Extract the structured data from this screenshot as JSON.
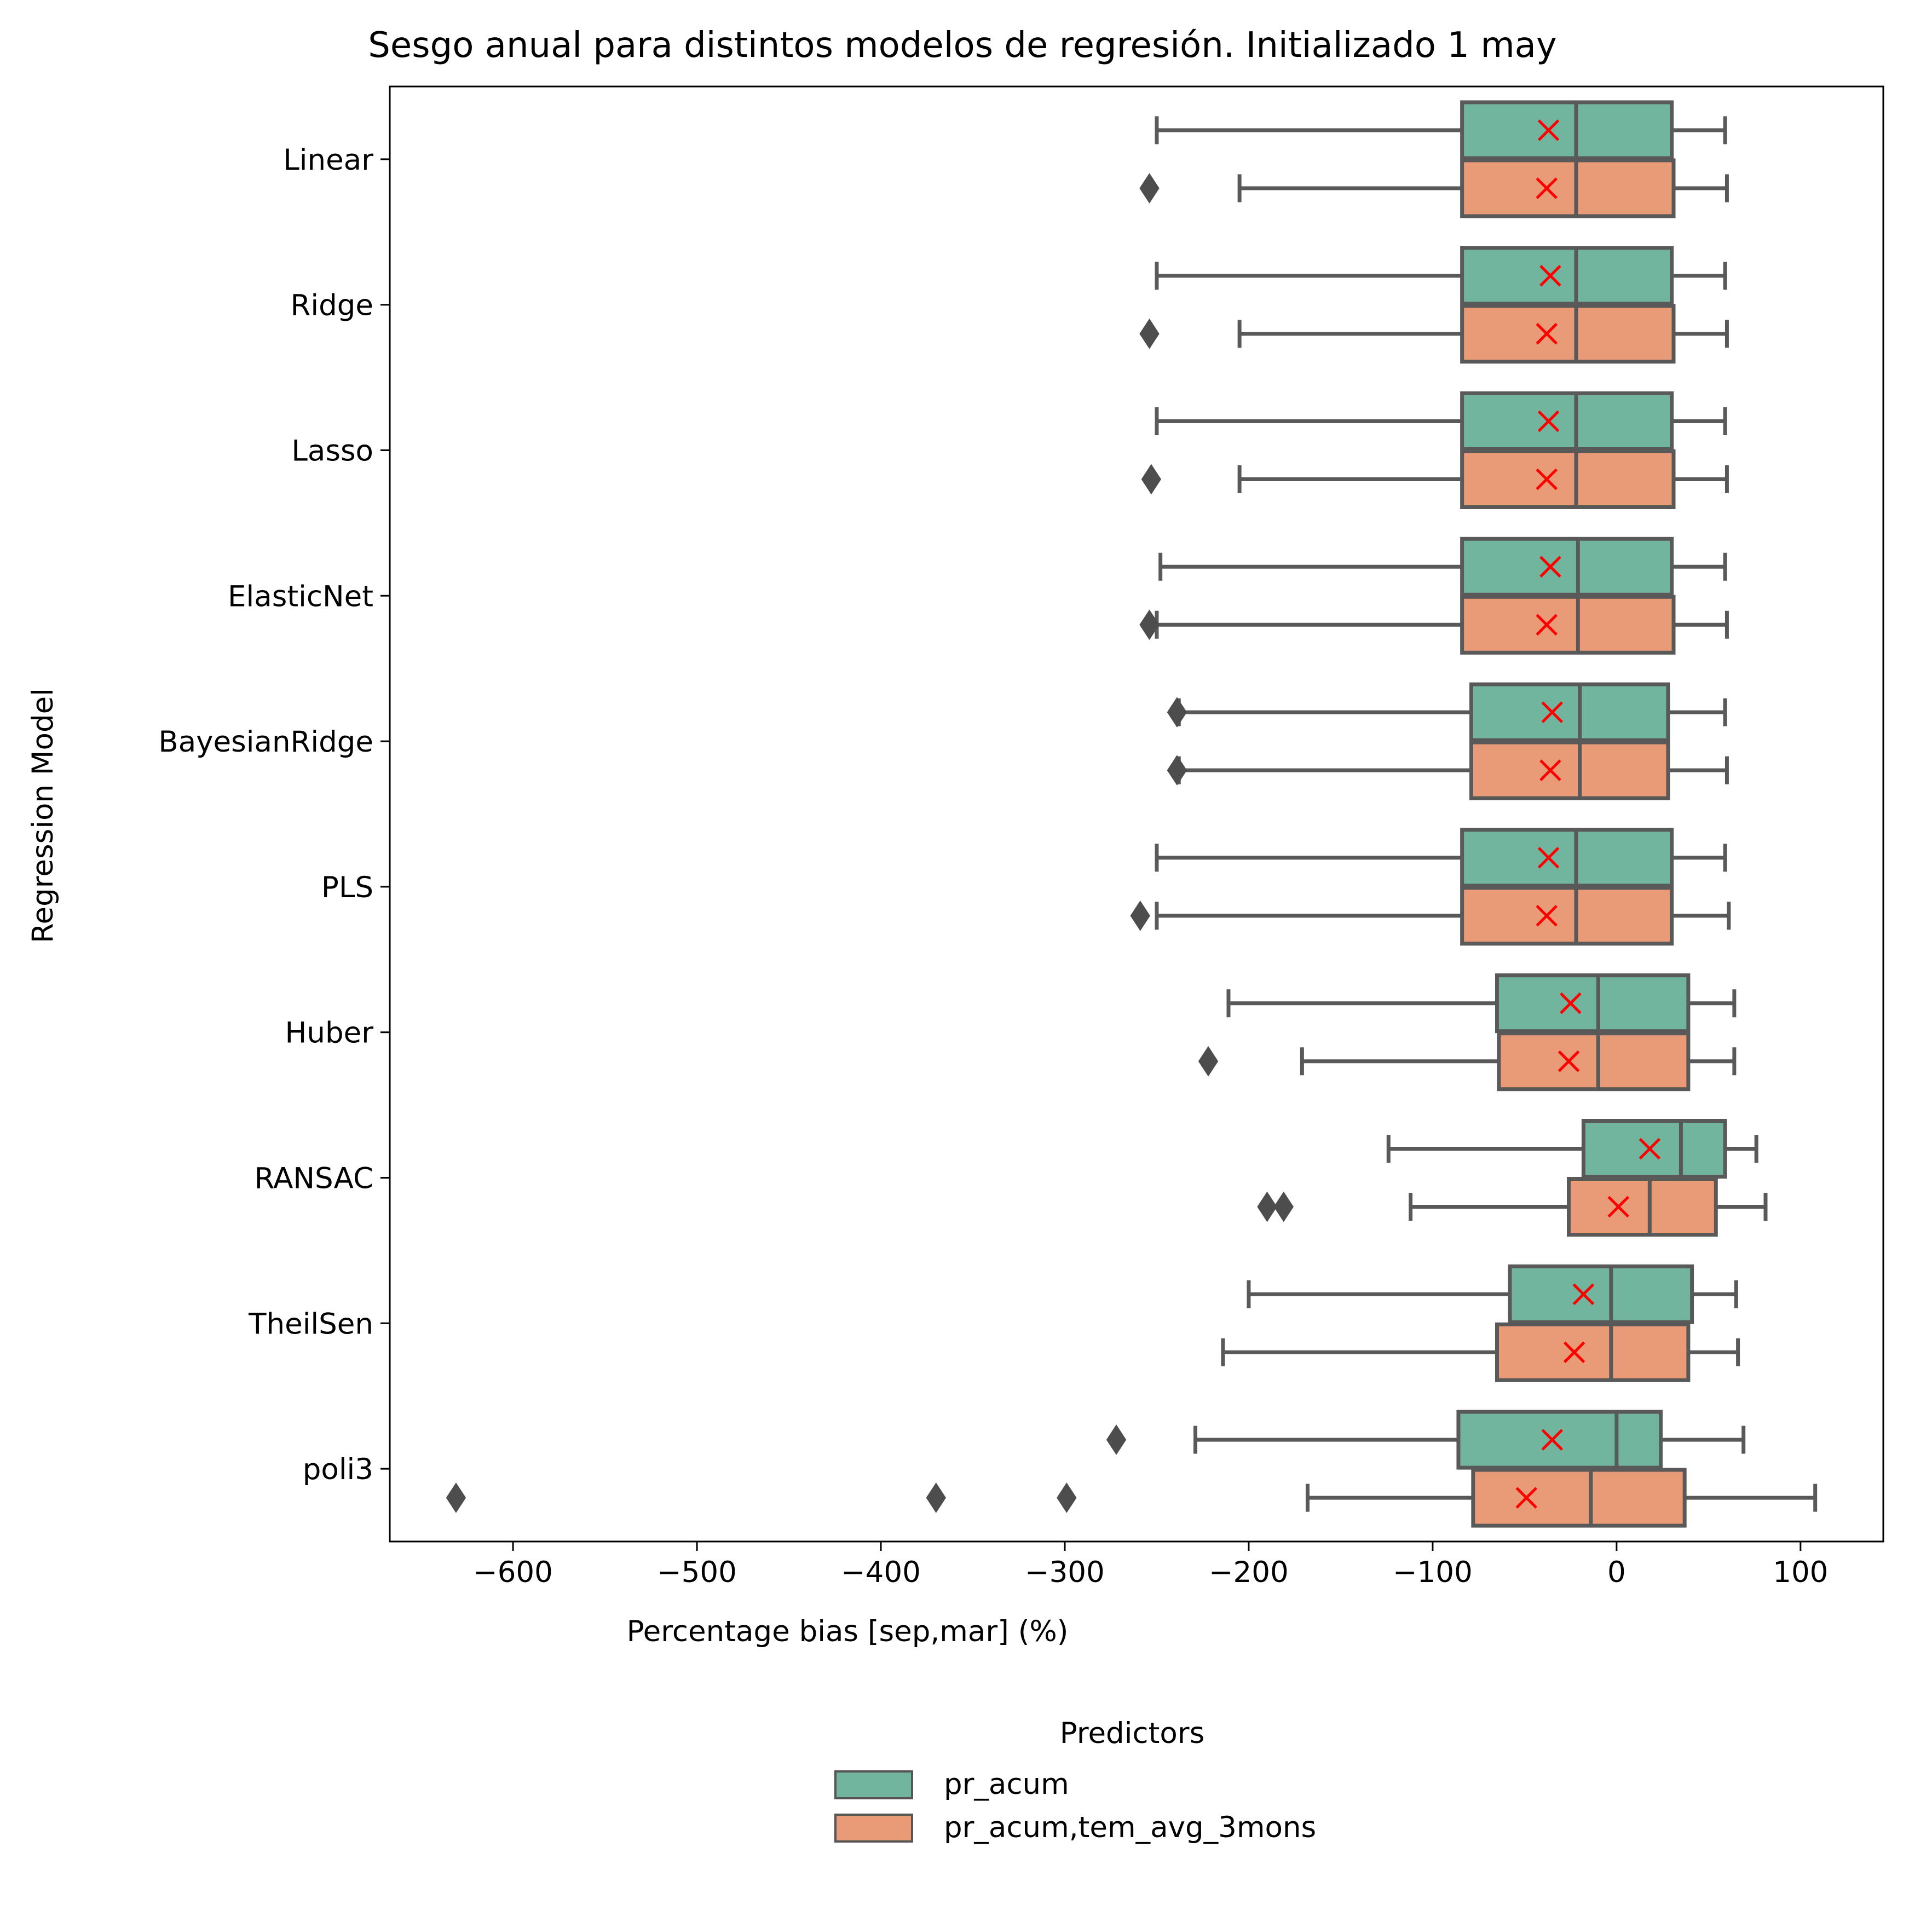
{
  "chart_data": {
    "type": "boxplot",
    "orientation": "horizontal",
    "title": "Sesgo anual para distintos modelos de regresión. Initializado 1 may",
    "xlabel": "Percentage bias [sep,mar] (%)",
    "ylabel": "Regression Model",
    "xlim": [
      -667,
      145
    ],
    "xticks": [
      -600,
      -500,
      -400,
      -300,
      -200,
      -100,
      0,
      100
    ],
    "xtick_labels": [
      "−600",
      "−500",
      "−400",
      "−300",
      "−200",
      "−100",
      "0",
      "100"
    ],
    "categories": [
      "Linear",
      "Ridge",
      "Lasso",
      "ElasticNet",
      "BayesianRidge",
      "PLS",
      "Huber",
      "RANSAC",
      "TheilSen",
      "poli3"
    ],
    "legend": {
      "title": "Predictors",
      "placement": "below plot, centered",
      "entries": [
        "pr_acum",
        "pr_acum,tem_avg_3mons"
      ]
    },
    "series": [
      {
        "name": "pr_acum",
        "color": "#72b59f",
        "boxes": [
          {
            "whislo": -250,
            "q1": -84,
            "med": -22,
            "q3": 30,
            "whishi": 59,
            "mean": -37,
            "fliers": []
          },
          {
            "whislo": -250,
            "q1": -84,
            "med": -22,
            "q3": 30,
            "whishi": 59,
            "mean": -36,
            "fliers": []
          },
          {
            "whislo": -250,
            "q1": -84,
            "med": -22,
            "q3": 30,
            "whishi": 59,
            "mean": -37,
            "fliers": []
          },
          {
            "whislo": -248,
            "q1": -84,
            "med": -21,
            "q3": 30,
            "whishi": 59,
            "mean": -36,
            "fliers": []
          },
          {
            "whislo": -238,
            "q1": -79,
            "med": -20,
            "q3": 28,
            "whishi": 59,
            "mean": -35,
            "fliers": [
              -239
            ]
          },
          {
            "whislo": -250,
            "q1": -84,
            "med": -22,
            "q3": 30,
            "whishi": 59,
            "mean": -37,
            "fliers": []
          },
          {
            "whislo": -211,
            "q1": -65,
            "med": -10,
            "q3": 39,
            "whishi": 64,
            "mean": -25,
            "fliers": []
          },
          {
            "whislo": -124,
            "q1": -18,
            "med": 35,
            "q3": 59,
            "whishi": 76,
            "mean": 18,
            "fliers": []
          },
          {
            "whislo": -200,
            "q1": -58,
            "med": -3,
            "q3": 41,
            "whishi": 65,
            "mean": -18,
            "fliers": []
          },
          {
            "whislo": -229,
            "q1": -86,
            "med": 0,
            "q3": 24,
            "whishi": 69,
            "mean": -35,
            "fliers": [
              -272
            ]
          }
        ]
      },
      {
        "name": "pr_acum,tem_avg_3mons",
        "color": "#e99a76",
        "boxes": [
          {
            "whislo": -205,
            "q1": -84,
            "med": -22,
            "q3": 31,
            "whishi": 60,
            "mean": -38,
            "fliers": [
              -254
            ]
          },
          {
            "whislo": -205,
            "q1": -84,
            "med": -22,
            "q3": 31,
            "whishi": 60,
            "mean": -38,
            "fliers": [
              -254
            ]
          },
          {
            "whislo": -205,
            "q1": -84,
            "med": -22,
            "q3": 31,
            "whishi": 60,
            "mean": -38,
            "fliers": [
              -253
            ]
          },
          {
            "whislo": -250,
            "q1": -84,
            "med": -21,
            "q3": 31,
            "whishi": 60,
            "mean": -38,
            "fliers": [
              -254
            ]
          },
          {
            "whislo": -238,
            "q1": -79,
            "med": -20,
            "q3": 28,
            "whishi": 60,
            "mean": -36,
            "fliers": [
              -239
            ]
          },
          {
            "whislo": -250,
            "q1": -84,
            "med": -22,
            "q3": 30,
            "whishi": 61,
            "mean": -38,
            "fliers": [
              -259
            ]
          },
          {
            "whislo": -171,
            "q1": -64,
            "med": -10,
            "q3": 39,
            "whishi": 64,
            "mean": -26,
            "fliers": [
              -222
            ]
          },
          {
            "whislo": -112,
            "q1": -26,
            "med": 18,
            "q3": 54,
            "whishi": 81,
            "mean": 1,
            "fliers": [
              -190,
              -181
            ]
          },
          {
            "whislo": -214,
            "q1": -65,
            "med": -3,
            "q3": 39,
            "whishi": 66,
            "mean": -23,
            "fliers": []
          },
          {
            "whislo": -168,
            "q1": -78,
            "med": -14,
            "q3": 37,
            "whishi": 108,
            "mean": -49,
            "fliers": [
              -631,
              -370,
              -299
            ]
          }
        ]
      }
    ]
  }
}
